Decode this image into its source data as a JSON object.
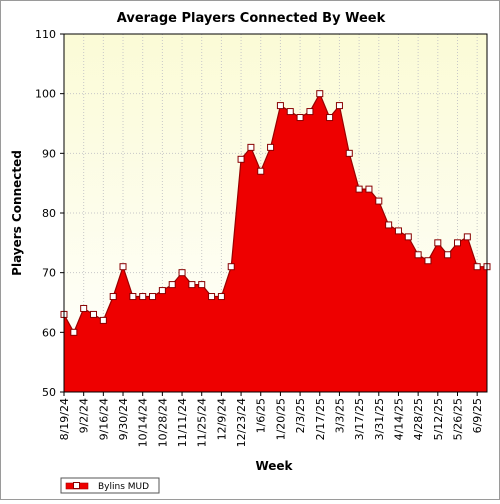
{
  "chart_data": {
    "type": "area",
    "title": "Average Players Connected By Week",
    "xlabel": "Week",
    "ylabel": "Players Connected",
    "ylim": [
      50,
      110
    ],
    "yticks": [
      50,
      60,
      70,
      80,
      90,
      100,
      110
    ],
    "grid": true,
    "legend_position": "bottom-left",
    "x_tick_labels": [
      "8/19/24",
      "9/2/24",
      "9/16/24",
      "9/30/24",
      "10/14/24",
      "10/28/24",
      "11/11/24",
      "11/25/24",
      "12/9/24",
      "12/23/24",
      "1/6/25",
      "1/20/25",
      "2/3/25",
      "2/17/25",
      "3/3/25",
      "3/17/25",
      "3/31/25",
      "4/14/25",
      "4/28/25",
      "5/12/25",
      "5/26/25",
      "6/9/25"
    ],
    "categories": [
      "8/19/24",
      "8/26/24",
      "9/2/24",
      "9/9/24",
      "9/16/24",
      "9/23/24",
      "9/30/24",
      "10/7/24",
      "10/14/24",
      "10/21/24",
      "10/28/24",
      "11/4/24",
      "11/11/24",
      "11/18/24",
      "11/25/24",
      "12/2/24",
      "12/9/24",
      "12/16/24",
      "12/23/24",
      "12/30/24",
      "1/6/25",
      "1/13/25",
      "1/20/25",
      "1/27/25",
      "2/3/25",
      "2/10/25",
      "2/17/25",
      "2/24/25",
      "3/3/25",
      "3/10/25",
      "3/17/25",
      "3/24/25",
      "3/31/25",
      "4/7/25",
      "4/14/25",
      "4/21/25",
      "4/28/25",
      "5/5/25",
      "5/12/25",
      "5/19/25",
      "5/26/25",
      "6/2/25",
      "6/9/25",
      "6/16/25"
    ],
    "series": [
      {
        "name": "Bylins MUD",
        "color": "#ee0000",
        "values": [
          63,
          60,
          64,
          63,
          62,
          66,
          71,
          66,
          66,
          66,
          67,
          68,
          70,
          68,
          68,
          66,
          66,
          71,
          89,
          91,
          87,
          91,
          98,
          97,
          96,
          97,
          100,
          96,
          98,
          90,
          84,
          84,
          82,
          78,
          77,
          76,
          73,
          72,
          75,
          73,
          75,
          76,
          71,
          71
        ]
      }
    ]
  }
}
